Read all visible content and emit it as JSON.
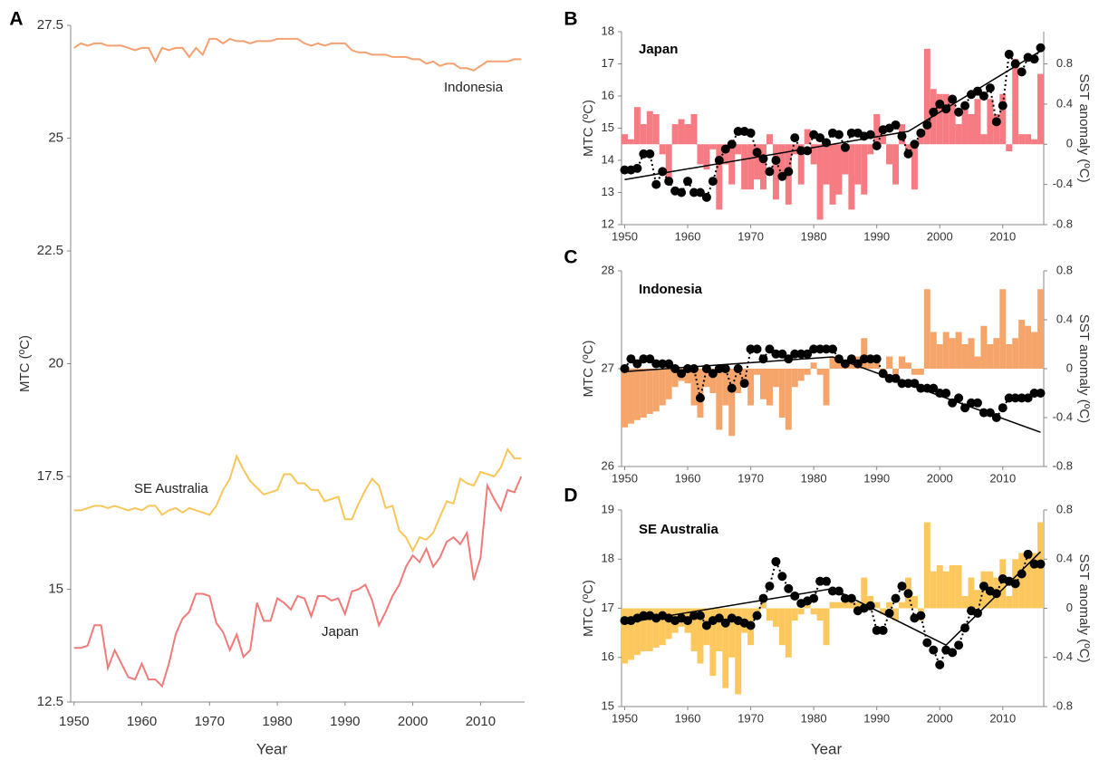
{
  "chart_data": [
    {
      "type": "line",
      "label": "A",
      "xlabel": "Year",
      "ylabel": "MTC (ºC)",
      "x": [
        1950,
        1951,
        1952,
        1953,
        1954,
        1955,
        1956,
        1957,
        1958,
        1959,
        1960,
        1961,
        1962,
        1963,
        1964,
        1965,
        1966,
        1967,
        1968,
        1969,
        1970,
        1971,
        1972,
        1973,
        1974,
        1975,
        1976,
        1977,
        1978,
        1979,
        1980,
        1981,
        1982,
        1983,
        1984,
        1985,
        1986,
        1987,
        1988,
        1989,
        1990,
        1991,
        1992,
        1993,
        1994,
        1995,
        1996,
        1997,
        1998,
        1999,
        2000,
        2001,
        2002,
        2003,
        2004,
        2005,
        2006,
        2007,
        2008,
        2009,
        2010,
        2011,
        2012,
        2013,
        2014,
        2015,
        2016
      ],
      "xlim": [
        1949.5,
        2016.5
      ],
      "xticks": [
        1950,
        1960,
        1970,
        1980,
        1990,
        2000,
        2010
      ],
      "ylim": [
        12.5,
        27.5
      ],
      "yticks": [
        12.5,
        15,
        17.5,
        20,
        22.5,
        25,
        27.5
      ],
      "series": [
        {
          "name": "Indonesia",
          "color": "#f4a070",
          "values": [
            27.0,
            27.1,
            27.05,
            27.1,
            27.1,
            27.05,
            27.05,
            27.05,
            27.0,
            26.95,
            27.0,
            27.0,
            26.7,
            27.0,
            26.95,
            27.0,
            27.0,
            26.8,
            27.0,
            26.85,
            27.2,
            27.2,
            27.1,
            27.2,
            27.15,
            27.15,
            27.1,
            27.15,
            27.15,
            27.15,
            27.2,
            27.2,
            27.2,
            27.2,
            27.1,
            27.05,
            27.1,
            27.05,
            27.1,
            27.1,
            27.1,
            26.95,
            26.9,
            26.9,
            26.85,
            26.85,
            26.85,
            26.8,
            26.8,
            26.8,
            26.75,
            26.75,
            26.65,
            26.7,
            26.6,
            26.65,
            26.65,
            26.55,
            26.55,
            26.5,
            26.6,
            26.7,
            26.7,
            26.7,
            26.7,
            26.75,
            26.75
          ]
        },
        {
          "name": "SE Australia",
          "color": "#f9c65a",
          "values": [
            16.75,
            16.75,
            16.8,
            16.85,
            16.85,
            16.8,
            16.85,
            16.8,
            16.75,
            16.8,
            16.75,
            16.85,
            16.85,
            16.65,
            16.75,
            16.8,
            16.7,
            16.8,
            16.75,
            16.7,
            16.65,
            16.85,
            17.2,
            17.45,
            17.95,
            17.65,
            17.4,
            17.25,
            17.1,
            17.15,
            17.2,
            17.55,
            17.55,
            17.35,
            17.35,
            17.2,
            17.2,
            16.95,
            17.0,
            17.05,
            16.55,
            16.55,
            16.9,
            17.2,
            17.45,
            17.3,
            16.8,
            16.85,
            16.3,
            16.15,
            15.85,
            16.15,
            16.1,
            16.25,
            16.6,
            16.95,
            16.9,
            17.45,
            17.35,
            17.3,
            17.6,
            17.55,
            17.5,
            17.7,
            18.1,
            17.9,
            17.9
          ]
        },
        {
          "name": "Japan",
          "color": "#f07b7b",
          "values": [
            13.7,
            13.7,
            13.75,
            14.2,
            14.2,
            13.25,
            13.65,
            13.35,
            13.05,
            13.0,
            13.35,
            13.0,
            13.0,
            12.85,
            13.35,
            14.0,
            14.35,
            14.5,
            14.9,
            14.9,
            14.85,
            14.25,
            14.05,
            13.65,
            14.0,
            13.5,
            13.65,
            14.7,
            14.3,
            14.3,
            14.8,
            14.7,
            14.55,
            14.85,
            14.8,
            14.4,
            14.85,
            14.85,
            14.75,
            14.8,
            14.45,
            14.95,
            15.0,
            15.1,
            14.75,
            14.2,
            14.5,
            14.85,
            15.1,
            15.5,
            15.75,
            15.6,
            15.9,
            15.5,
            15.7,
            16.05,
            16.15,
            16.0,
            16.25,
            15.2,
            15.7,
            17.3,
            17.0,
            16.75,
            17.2,
            17.15,
            17.5
          ]
        }
      ]
    },
    {
      "type": "combo",
      "label": "B",
      "title": "Japan",
      "ylabel": "MTC (ºC)",
      "y2label": "SST anomaly (ºC)",
      "x": [
        1950,
        1951,
        1952,
        1953,
        1954,
        1955,
        1956,
        1957,
        1958,
        1959,
        1960,
        1961,
        1962,
        1963,
        1964,
        1965,
        1966,
        1967,
        1968,
        1969,
        1970,
        1971,
        1972,
        1973,
        1974,
        1975,
        1976,
        1977,
        1978,
        1979,
        1980,
        1981,
        1982,
        1983,
        1984,
        1985,
        1986,
        1987,
        1988,
        1989,
        1990,
        1991,
        1992,
        1993,
        1994,
        1995,
        1996,
        1997,
        1998,
        1999,
        2000,
        2001,
        2002,
        2003,
        2004,
        2005,
        2006,
        2007,
        2008,
        2009,
        2010,
        2011,
        2012,
        2013,
        2014,
        2015,
        2016
      ],
      "xlim": [
        1949.5,
        2016.5
      ],
      "xticks": [
        1950,
        1960,
        1970,
        1980,
        1990,
        2000,
        2010
      ],
      "ylim": [
        12,
        18
      ],
      "yticks": [
        12,
        13,
        14,
        15,
        16,
        17,
        18
      ],
      "y2lim": [
        -0.8,
        1.12
      ],
      "y2ticks": [
        -0.8,
        -0.4,
        0,
        0.4,
        0.8
      ],
      "series": [
        {
          "type": "bar",
          "axis": "y2",
          "color": "#f67b82",
          "values": [
            0.1,
            0.05,
            0.37,
            0.2,
            0.33,
            0.3,
            -0.1,
            -0.35,
            0.2,
            0.25,
            0.2,
            0.3,
            -0.2,
            -0.25,
            -0.05,
            -0.65,
            -0.2,
            -0.4,
            -0.1,
            -0.45,
            -0.45,
            -0.35,
            -0.45,
            0.1,
            -0.55,
            -0.3,
            -0.6,
            -0.1,
            -0.4,
            0.15,
            -0.2,
            -0.75,
            -0.4,
            -0.6,
            -0.5,
            -0.3,
            -0.65,
            -0.4,
            -0.5,
            -0.1,
            0.3,
            0.1,
            -0.2,
            -0.4,
            0.2,
            -0.1,
            -0.45,
            0.1,
            0.95,
            0.55,
            0.5,
            0.5,
            0.45,
            0.2,
            0.4,
            0.3,
            0.45,
            0.1,
            0.45,
            0.3,
            0.5,
            -0.07,
            0.85,
            0.1,
            0.1,
            0.05,
            0.7
          ]
        },
        {
          "type": "dots",
          "color": "#000000",
          "values": [
            13.7,
            13.7,
            13.75,
            14.2,
            14.2,
            13.25,
            13.65,
            13.35,
            13.05,
            13.0,
            13.35,
            13.0,
            13.0,
            12.85,
            13.35,
            14.0,
            14.35,
            14.5,
            14.9,
            14.9,
            14.85,
            14.25,
            14.05,
            13.65,
            14.0,
            13.5,
            13.65,
            14.7,
            14.3,
            14.3,
            14.8,
            14.7,
            14.55,
            14.85,
            14.8,
            14.4,
            14.85,
            14.85,
            14.75,
            14.8,
            14.45,
            14.95,
            15.0,
            15.1,
            14.75,
            14.2,
            14.5,
            14.85,
            15.1,
            15.5,
            15.75,
            15.6,
            15.9,
            15.5,
            15.7,
            16.05,
            16.15,
            16.0,
            16.25,
            15.2,
            15.7,
            17.3,
            17.0,
            16.75,
            17.2,
            17.15,
            17.5
          ]
        },
        {
          "type": "trend",
          "color": "#000000",
          "x": [
            1950,
            1995,
            2016
          ],
          "values": [
            13.4,
            14.9,
            17.4
          ]
        }
      ]
    },
    {
      "type": "combo",
      "label": "C",
      "title": "Indonesia",
      "ylabel": "MTC (ºC)",
      "y2label": "SST anomaly (ºC)",
      "x": [
        1950,
        1951,
        1952,
        1953,
        1954,
        1955,
        1956,
        1957,
        1958,
        1959,
        1960,
        1961,
        1962,
        1963,
        1964,
        1965,
        1966,
        1967,
        1968,
        1969,
        1970,
        1971,
        1972,
        1973,
        1974,
        1975,
        1976,
        1977,
        1978,
        1979,
        1980,
        1981,
        1982,
        1983,
        1984,
        1985,
        1986,
        1987,
        1988,
        1989,
        1990,
        1991,
        1992,
        1993,
        1994,
        1995,
        1996,
        1997,
        1998,
        1999,
        2000,
        2001,
        2002,
        2003,
        2004,
        2005,
        2006,
        2007,
        2008,
        2009,
        2010,
        2011,
        2012,
        2013,
        2014,
        2015,
        2016
      ],
      "xlim": [
        1949.5,
        2016.5
      ],
      "xticks": [
        1950,
        1960,
        1970,
        1980,
        1990,
        2000,
        2010
      ],
      "ylim": [
        26,
        28
      ],
      "yticks": [
        26,
        27,
        28
      ],
      "y2lim": [
        -0.8,
        0.8
      ],
      "y2ticks": [
        -0.8,
        -0.4,
        0,
        0.4,
        0.8
      ],
      "series": [
        {
          "type": "bar",
          "axis": "y2",
          "color": "#f5a46a",
          "values": [
            -0.48,
            -0.45,
            -0.42,
            -0.4,
            -0.37,
            -0.35,
            -0.3,
            -0.25,
            -0.15,
            -0.1,
            -0.12,
            -0.3,
            -0.4,
            -0.15,
            -0.2,
            -0.5,
            -0.3,
            -0.55,
            -0.2,
            -0.1,
            -0.3,
            -0.05,
            -0.25,
            -0.3,
            -0.15,
            -0.4,
            -0.5,
            -0.15,
            -0.1,
            -0.05,
            0.05,
            -0.05,
            -0.3,
            0.1,
            0.05,
            0.05,
            0.1,
            0.1,
            0.25,
            0.1,
            0.05,
            -0.05,
            0.1,
            -0.1,
            0.1,
            0.05,
            -0.05,
            -0.05,
            0.65,
            0.3,
            0.2,
            0.3,
            0.25,
            0.3,
            0.2,
            0.25,
            0.1,
            0.35,
            0.2,
            0.25,
            0.65,
            0.2,
            0.25,
            0.4,
            0.35,
            0.3,
            0.65
          ]
        },
        {
          "type": "dots",
          "color": "#000000",
          "values": [
            27.0,
            27.1,
            27.05,
            27.1,
            27.1,
            27.05,
            27.05,
            27.05,
            27.0,
            26.95,
            27.0,
            27.0,
            26.7,
            27.0,
            26.95,
            27.0,
            27.0,
            26.8,
            27.0,
            26.85,
            27.2,
            27.2,
            27.1,
            27.2,
            27.15,
            27.15,
            27.1,
            27.15,
            27.15,
            27.15,
            27.2,
            27.2,
            27.2,
            27.2,
            27.1,
            27.05,
            27.1,
            27.05,
            27.1,
            27.1,
            27.1,
            26.95,
            26.9,
            26.9,
            26.85,
            26.85,
            26.85,
            26.8,
            26.8,
            26.8,
            26.75,
            26.75,
            26.65,
            26.7,
            26.6,
            26.65,
            26.65,
            26.55,
            26.55,
            26.5,
            26.6,
            26.7,
            26.7,
            26.7,
            26.7,
            26.75,
            26.75
          ]
        },
        {
          "type": "trend",
          "color": "#000000",
          "x": [
            1950,
            1983,
            2016
          ],
          "values": [
            26.97,
            27.12,
            26.35
          ]
        }
      ]
    },
    {
      "type": "combo",
      "label": "D",
      "title": "SE Australia",
      "xlabel": "Year",
      "ylabel": "MTC (ºC)",
      "y2label": "SST anomaly (ºC)",
      "x": [
        1950,
        1951,
        1952,
        1953,
        1954,
        1955,
        1956,
        1957,
        1958,
        1959,
        1960,
        1961,
        1962,
        1963,
        1964,
        1965,
        1966,
        1967,
        1968,
        1969,
        1970,
        1971,
        1972,
        1973,
        1974,
        1975,
        1976,
        1977,
        1978,
        1979,
        1980,
        1981,
        1982,
        1983,
        1984,
        1985,
        1986,
        1987,
        1988,
        1989,
        1990,
        1991,
        1992,
        1993,
        1994,
        1995,
        1996,
        1997,
        1998,
        1999,
        2000,
        2001,
        2002,
        2003,
        2004,
        2005,
        2006,
        2007,
        2008,
        2009,
        2010,
        2011,
        2012,
        2013,
        2014,
        2015,
        2016
      ],
      "xlim": [
        1949.5,
        2016.5
      ],
      "xticks": [
        1950,
        1960,
        1970,
        1980,
        1990,
        2000,
        2010
      ],
      "ylim": [
        15,
        19
      ],
      "yticks": [
        15,
        16,
        17,
        18,
        19
      ],
      "y2lim": [
        -0.8,
        0.8
      ],
      "y2ticks": [
        -0.8,
        -0.4,
        0,
        0.4,
        0.8
      ],
      "series": [
        {
          "type": "bar",
          "axis": "y2",
          "color": "#fcc85e",
          "values": [
            -0.45,
            -0.42,
            -0.38,
            -0.35,
            -0.35,
            -0.32,
            -0.3,
            -0.25,
            -0.2,
            -0.15,
            -0.2,
            -0.35,
            -0.45,
            -0.3,
            -0.55,
            -0.35,
            -0.65,
            -0.4,
            -0.7,
            -0.2,
            -0.3,
            -0.05,
            0.05,
            -0.1,
            -0.15,
            -0.3,
            -0.4,
            -0.1,
            -0.05,
            0.05,
            -0.05,
            -0.1,
            -0.3,
            0.05,
            0.05,
            0.05,
            0.05,
            0.05,
            0.25,
            0.1,
            0.05,
            -0.05,
            0.05,
            -0.1,
            0.05,
            0.25,
            0.1,
            -0.1,
            0.7,
            0.3,
            0.35,
            0.3,
            0.35,
            0.35,
            0.1,
            0.25,
            0.15,
            0.3,
            0.3,
            0.25,
            0.4,
            0.1,
            0.4,
            0.45,
            0.45,
            0.45,
            0.7
          ]
        },
        {
          "type": "dots",
          "color": "#000000",
          "values": [
            16.75,
            16.75,
            16.8,
            16.85,
            16.85,
            16.8,
            16.85,
            16.8,
            16.75,
            16.8,
            16.75,
            16.85,
            16.85,
            16.65,
            16.75,
            16.8,
            16.7,
            16.8,
            16.75,
            16.7,
            16.65,
            16.85,
            17.2,
            17.45,
            17.95,
            17.65,
            17.4,
            17.25,
            17.1,
            17.15,
            17.2,
            17.55,
            17.55,
            17.35,
            17.35,
            17.2,
            17.2,
            16.95,
            17.0,
            17.05,
            16.55,
            16.55,
            16.9,
            17.2,
            17.45,
            17.3,
            16.8,
            16.85,
            16.3,
            16.15,
            15.85,
            16.15,
            16.1,
            16.25,
            16.6,
            16.95,
            16.9,
            17.45,
            17.35,
            17.3,
            17.6,
            17.55,
            17.5,
            17.7,
            18.1,
            17.9,
            17.9
          ]
        },
        {
          "type": "trend",
          "color": "#000000",
          "x": [
            1950,
            1983,
            2001,
            2016
          ],
          "values": [
            16.7,
            17.4,
            16.25,
            18.15
          ]
        }
      ]
    }
  ]
}
